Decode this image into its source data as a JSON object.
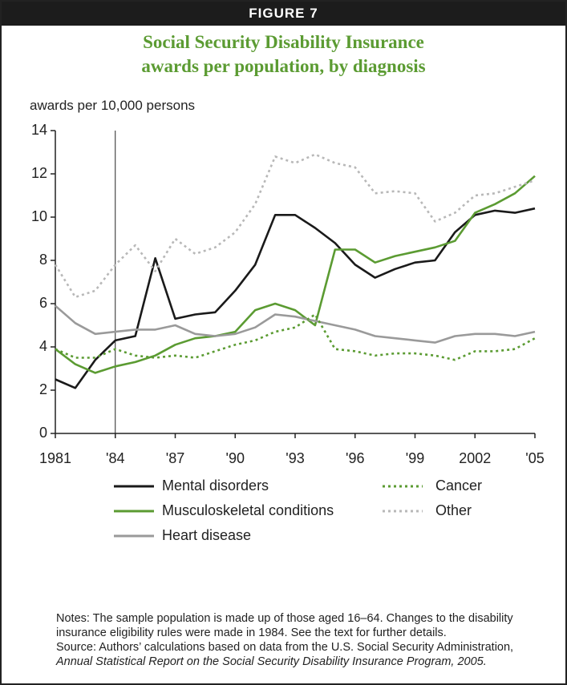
{
  "header": "FIGURE 7",
  "chart_data": {
    "type": "line",
    "title": "Social Security Disability Insurance awards per population, by diagnosis",
    "y_label": "awards per 10,000 persons",
    "x": [
      1981,
      1982,
      1983,
      1984,
      1985,
      1986,
      1987,
      1988,
      1989,
      1990,
      1991,
      1992,
      1993,
      1994,
      1995,
      1996,
      1997,
      1998,
      1999,
      2000,
      2001,
      2002,
      2003,
      2004,
      2005
    ],
    "xlim": [
      1981,
      2005
    ],
    "xticks": [
      1981,
      {
        "value": 1984,
        "label": "'84"
      },
      {
        "value": 1987,
        "label": "'87"
      },
      {
        "value": 1990,
        "label": "'90"
      },
      {
        "value": 1993,
        "label": "'93"
      },
      {
        "value": 1996,
        "label": "'96"
      },
      {
        "value": 1999,
        "label": "'99"
      },
      2002,
      {
        "value": 2005,
        "label": "'05"
      }
    ],
    "ylim": [
      0,
      14
    ],
    "yticks": [
      0,
      2,
      4,
      6,
      8,
      10,
      12,
      14
    ],
    "reference_line_x": 1984,
    "series": [
      {
        "name": "Mental disorders",
        "color": "#1a1a1a",
        "dotted": false,
        "values": [
          2.5,
          2.1,
          3.4,
          4.3,
          4.5,
          8.1,
          5.3,
          5.5,
          5.6,
          6.6,
          7.8,
          10.1,
          10.1,
          9.5,
          8.8,
          7.8,
          7.2,
          7.6,
          7.9,
          8.0,
          9.3,
          10.1,
          10.3,
          10.2,
          10.4
        ]
      },
      {
        "name": "Musculoskeletal conditions",
        "color": "#5b9b32",
        "dotted": false,
        "values": [
          3.9,
          3.2,
          2.8,
          3.1,
          3.3,
          3.6,
          4.1,
          4.4,
          4.5,
          4.7,
          5.7,
          6.0,
          5.7,
          5.0,
          8.5,
          8.5,
          7.9,
          8.2,
          8.4,
          8.6,
          8.9,
          10.2,
          10.6,
          11.1,
          11.9
        ]
      },
      {
        "name": "Heart disease",
        "color": "#9a9a9a",
        "dotted": false,
        "values": [
          5.9,
          5.1,
          4.6,
          4.7,
          4.8,
          4.8,
          5.0,
          4.6,
          4.5,
          4.6,
          4.9,
          5.5,
          5.4,
          5.2,
          5.0,
          4.8,
          4.5,
          4.4,
          4.3,
          4.2,
          4.5,
          4.6,
          4.6,
          4.5,
          4.7
        ]
      },
      {
        "name": "Cancer",
        "color": "#5b9b32",
        "dotted": true,
        "values": [
          3.9,
          3.5,
          3.5,
          3.9,
          3.6,
          3.5,
          3.6,
          3.5,
          3.8,
          4.1,
          4.3,
          4.7,
          4.9,
          5.5,
          3.9,
          3.8,
          3.6,
          3.7,
          3.7,
          3.6,
          3.4,
          3.8,
          3.8,
          3.9,
          4.4
        ]
      },
      {
        "name": "Other",
        "color": "#b8b8b8",
        "dotted": true,
        "values": [
          7.8,
          6.3,
          6.6,
          7.8,
          8.7,
          7.5,
          9.0,
          8.3,
          8.6,
          9.3,
          10.6,
          12.8,
          12.5,
          12.9,
          12.5,
          12.3,
          11.1,
          11.2,
          11.1,
          9.8,
          10.2,
          11.0,
          11.1,
          11.4,
          11.7
        ]
      }
    ],
    "notes": "Notes: The sample population is made up of those aged 16–64. Changes to the disability insurance eligibility rules were made in 1984. See the text for further details.",
    "source": "Source: Authors’ calculations based on data from the U.S. Social Security Administration, ",
    "source_title": "Annual Statistical Report on the Social Security Disability Insurance Program, 2005."
  }
}
